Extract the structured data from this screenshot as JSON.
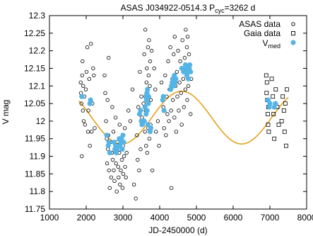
{
  "chart_data": {
    "type": "scatter",
    "title": {
      "main": "ASAS J034922-0514.3 P",
      "subscript": "cyc",
      "suffix": "=3262 d"
    },
    "xlabel": "JD-2450000 (d)",
    "ylabel": "V mag",
    "xlim": [
      1000,
      8000
    ],
    "ylim": [
      11.75,
      12.3
    ],
    "xticks": [
      "1000",
      "2000",
      "3000",
      "4000",
      "5000",
      "6000",
      "7000",
      "8000"
    ],
    "yticks": [
      "11.75",
      "11.8",
      "11.85",
      "11.9",
      "11.95",
      "12",
      "12.05",
      "12.1",
      "12.15",
      "12.2",
      "12.25",
      "12.3"
    ],
    "legend": {
      "position": "top-right",
      "entries": [
        {
          "label": "ASAS data",
          "marker": "open-circle"
        },
        {
          "label": "Gaia data",
          "marker": "open-square"
        },
        {
          "label": "V",
          "subscript": "med",
          "marker": "filled-circle"
        }
      ]
    },
    "colors": {
      "fit_curve": "#e5a11b",
      "vmed_points": "#55b4e6",
      "asas_points": "#000000",
      "gaia_points": "#000000"
    },
    "fit_curve": {
      "name": "sinusoidal fit",
      "period": 3262,
      "mean": 12.01,
      "amplitude": 0.075,
      "max_at": 4600
    },
    "series": [
      {
        "name": "ASAS data",
        "points": [
          [
            1850,
            12.11
          ],
          [
            1860,
            12.08
          ],
          [
            1870,
            12.05
          ],
          [
            1880,
            11.9
          ],
          [
            1890,
            12.13
          ],
          [
            1900,
            12.17
          ],
          [
            1910,
            12.03
          ],
          [
            1920,
            12.1
          ],
          [
            1930,
            12.0
          ],
          [
            1950,
            12.07
          ],
          [
            1970,
            11.99
          ],
          [
            1990,
            12.09
          ],
          [
            2010,
            12.14
          ],
          [
            2030,
            12.21
          ],
          [
            2050,
            11.97
          ],
          [
            2060,
            12.03
          ],
          [
            2080,
            12.12
          ],
          [
            2100,
            11.93
          ],
          [
            2110,
            12.06
          ],
          [
            2130,
            12.22
          ],
          [
            2150,
            11.97
          ],
          [
            2170,
            12.05
          ],
          [
            2190,
            12.15
          ],
          [
            2210,
            12.13
          ],
          [
            2230,
            11.98
          ],
          [
            2500,
            12.13
          ],
          [
            2520,
            12.08
          ],
          [
            2540,
            12.0
          ],
          [
            2560,
            11.95
          ],
          [
            2570,
            11.88
          ],
          [
            2580,
            12.06
          ],
          [
            2590,
            11.92
          ],
          [
            2600,
            11.96
          ],
          [
            2610,
            12.18
          ],
          [
            2620,
            11.86
          ],
          [
            2640,
            11.81
          ],
          [
            2660,
            11.94
          ],
          [
            2680,
            11.84
          ],
          [
            2700,
            11.91
          ],
          [
            2710,
            12.04
          ],
          [
            2720,
            11.89
          ],
          [
            2740,
            11.97
          ],
          [
            2750,
            11.86
          ],
          [
            2770,
            11.83
          ],
          [
            2790,
            11.93
          ],
          [
            2800,
            12.01
          ],
          [
            2810,
            11.88
          ],
          [
            2830,
            11.8
          ],
          [
            2850,
            11.94
          ],
          [
            2870,
            11.87
          ],
          [
            2880,
            11.84
          ],
          [
            2900,
            11.91
          ],
          [
            2910,
            11.99
          ],
          [
            2920,
            11.82
          ],
          [
            2940,
            11.86
          ],
          [
            2950,
            11.95
          ],
          [
            2970,
            11.89
          ],
          [
            2990,
            11.81
          ],
          [
            3000,
            11.93
          ],
          [
            3010,
            11.85
          ],
          [
            3030,
            11.9
          ],
          [
            3050,
            11.98
          ],
          [
            3060,
            11.87
          ],
          [
            3080,
            11.84
          ],
          [
            3100,
            11.91
          ],
          [
            3150,
            12.03
          ],
          [
            3200,
            12.0
          ],
          [
            3260,
            12.09
          ],
          [
            3300,
            11.82
          ],
          [
            3350,
            11.78
          ],
          [
            3380,
            11.96
          ],
          [
            3400,
            11.89
          ],
          [
            3420,
            12.04
          ],
          [
            3440,
            11.86
          ],
          [
            3460,
            12.14
          ],
          [
            3480,
            11.92
          ],
          [
            3500,
            12.07
          ],
          [
            3520,
            12.01
          ],
          [
            3540,
            11.99
          ],
          [
            3560,
            12.05
          ],
          [
            3580,
            12.19
          ],
          [
            3600,
            11.97
          ],
          [
            3610,
            12.26
          ],
          [
            3620,
            12.03
          ],
          [
            3630,
            11.93
          ],
          [
            3640,
            12.11
          ],
          [
            3650,
            12.15
          ],
          [
            3660,
            11.91
          ],
          [
            3670,
            12.08
          ],
          [
            3680,
            12.21
          ],
          [
            3690,
            11.98
          ],
          [
            3700,
            12.13
          ],
          [
            3710,
            12.23
          ],
          [
            3720,
            11.95
          ],
          [
            3730,
            12.1
          ],
          [
            3740,
            12.17
          ],
          [
            3750,
            11.99
          ],
          [
            3760,
            12.06
          ],
          [
            3780,
            12.2
          ],
          [
            3800,
            11.86
          ],
          [
            3850,
            12.15
          ],
          [
            3880,
            12.09
          ],
          [
            3900,
            11.97
          ],
          [
            3950,
            12.0
          ],
          [
            3980,
            11.93
          ],
          [
            4050,
            12.11
          ],
          [
            4100,
            12.04
          ],
          [
            4120,
            11.98
          ],
          [
            4150,
            12.13
          ],
          [
            4170,
            11.96
          ],
          [
            4190,
            12.07
          ],
          [
            4210,
            12.02
          ],
          [
            4230,
            12.17
          ],
          [
            4250,
            12.0
          ],
          [
            4270,
            12.09
          ],
          [
            4290,
            12.21
          ],
          [
            4310,
            12.03
          ],
          [
            4320,
            11.81
          ],
          [
            4340,
            12.12
          ],
          [
            4360,
            12.06
          ],
          [
            4380,
            12.19
          ],
          [
            4400,
            12.01
          ],
          [
            4410,
            12.24
          ],
          [
            4430,
            12.1
          ],
          [
            4450,
            11.97
          ],
          [
            4470,
            12.14
          ],
          [
            4480,
            12.07
          ],
          [
            4500,
            12.2
          ],
          [
            4520,
            12.03
          ],
          [
            4540,
            12.11
          ],
          [
            4560,
            12.17
          ],
          [
            4580,
            12.08
          ],
          [
            4600,
            11.99
          ],
          [
            4620,
            12.23
          ],
          [
            4640,
            12.12
          ],
          [
            4660,
            12.04
          ],
          [
            4680,
            12.18
          ],
          [
            4700,
            12.09
          ],
          [
            4710,
            12.26
          ],
          [
            4720,
            12.14
          ],
          [
            4740,
            12.21
          ],
          [
            4750,
            12.06
          ],
          [
            4760,
            12.24
          ],
          [
            4780,
            12.1
          ],
          [
            4800,
            12.19
          ],
          [
            4820,
            12.15
          ],
          [
            4840,
            12.02
          ],
          [
            4860,
            12.12
          ]
        ]
      },
      {
        "name": "Gaia data",
        "points": [
          [
            6900,
            12.13
          ],
          [
            6910,
            12.08
          ],
          [
            6920,
            12.11
          ],
          [
            6930,
            12.06
          ],
          [
            6940,
            12.02
          ],
          [
            6950,
            11.99
          ],
          [
            6960,
            12.04
          ],
          [
            6970,
            11.97
          ],
          [
            7050,
            12.12
          ],
          [
            7080,
            12.07
          ],
          [
            7100,
            12.02
          ],
          [
            7120,
            11.95
          ],
          [
            7160,
            12.09
          ],
          [
            7200,
            12.04
          ],
          [
            7240,
            11.99
          ],
          [
            7320,
            12.0
          ],
          [
            7350,
            12.07
          ],
          [
            7380,
            12.03
          ],
          [
            7400,
            11.97
          ],
          [
            7420,
            12.05
          ],
          [
            7440,
            11.93
          ],
          [
            7460,
            12.09
          ]
        ]
      },
      {
        "name": "V med",
        "points": [
          [
            1880,
            12.07
          ],
          [
            2100,
            12.05
          ],
          [
            2120,
            12.06
          ],
          [
            2560,
            11.96
          ],
          [
            2600,
            11.93
          ],
          [
            2620,
            11.94
          ],
          [
            2640,
            11.91
          ],
          [
            2760,
            11.94
          ],
          [
            2780,
            11.92
          ],
          [
            2800,
            11.93
          ],
          [
            2820,
            11.91
          ],
          [
            2840,
            11.92
          ],
          [
            2900,
            11.95
          ],
          [
            2920,
            11.93
          ],
          [
            2940,
            11.94
          ],
          [
            2960,
            11.95
          ],
          [
            2980,
            11.92
          ],
          [
            3000,
            11.96
          ],
          [
            3020,
            11.94
          ],
          [
            3450,
            12.02
          ],
          [
            3480,
            12.03
          ],
          [
            3500,
            12.0
          ],
          [
            3520,
            11.99
          ],
          [
            3580,
            12.0
          ],
          [
            3600,
            12.04
          ],
          [
            3620,
            12.07
          ],
          [
            3630,
            12.02
          ],
          [
            3640,
            12.06
          ],
          [
            3650,
            12.08
          ],
          [
            3660,
            12.03
          ],
          [
            3670,
            12.09
          ],
          [
            3680,
            11.99
          ],
          [
            3690,
            12.05
          ],
          [
            3700,
            12.07
          ],
          [
            3740,
            11.97
          ],
          [
            3760,
            11.98
          ],
          [
            4080,
            12.06
          ],
          [
            4100,
            12.07
          ],
          [
            4120,
            12.03
          ],
          [
            4300,
            12.09
          ],
          [
            4320,
            12.1
          ],
          [
            4340,
            12.11
          ],
          [
            4360,
            12.12
          ],
          [
            4380,
            12.1
          ],
          [
            4400,
            12.13
          ],
          [
            4420,
            12.11
          ],
          [
            4440,
            12.12
          ],
          [
            4600,
            12.15
          ],
          [
            4650,
            12.14
          ],
          [
            4700,
            12.16
          ],
          [
            4720,
            12.15
          ],
          [
            4740,
            12.13
          ],
          [
            4760,
            12.14
          ],
          [
            4780,
            12.12
          ],
          [
            4800,
            12.15
          ],
          [
            4820,
            12.16
          ],
          [
            4840,
            12.14
          ],
          [
            6950,
            12.06
          ],
          [
            6980,
            12.04
          ],
          [
            7000,
            12.05
          ],
          [
            7120,
            12.04
          ],
          [
            7150,
            12.05
          ]
        ]
      }
    ]
  }
}
